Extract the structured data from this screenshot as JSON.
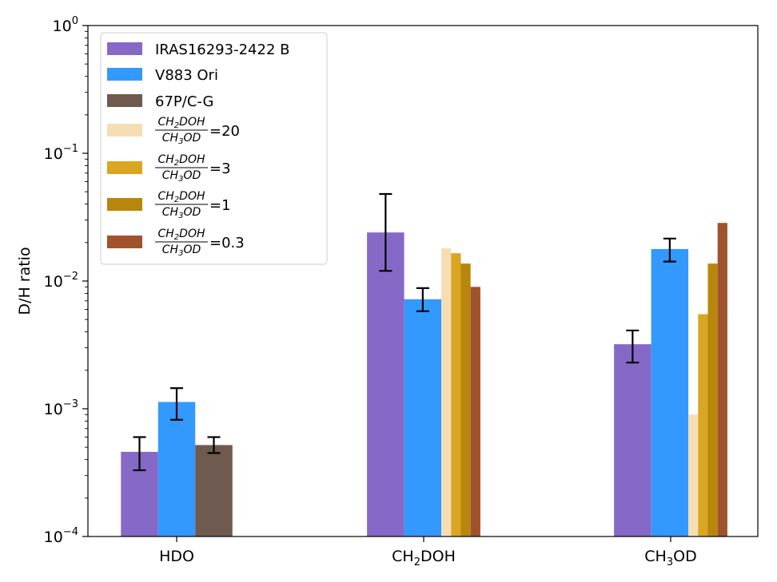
{
  "chart_data": {
    "type": "bar",
    "scale": "log",
    "ylabel": "D/H ratio",
    "ylim": [
      0.0001,
      1
    ],
    "y_ticks": [
      {
        "value": 0.0001,
        "base": "10",
        "exp": "−4"
      },
      {
        "value": 0.001,
        "base": "10",
        "exp": "−3"
      },
      {
        "value": 0.01,
        "base": "10",
        "exp": "−2"
      },
      {
        "value": 0.1,
        "base": "10",
        "exp": "−1"
      },
      {
        "value": 1,
        "base": "10",
        "exp": "0"
      }
    ],
    "categories": [
      {
        "pre": "HDO",
        "sub": "",
        "post": ""
      },
      {
        "pre": "CH",
        "sub": "2",
        "post": "DOH"
      },
      {
        "pre": "CH",
        "sub": "3",
        "post": "OD"
      }
    ],
    "series": [
      {
        "name": "IRAS16293-2422 B",
        "color": "#8669c7",
        "values": [
          0.00046,
          0.024,
          0.0032
        ],
        "err_low": [
          0.00033,
          0.012,
          0.0023
        ],
        "err_high": [
          0.0006,
          0.048,
          0.0041
        ]
      },
      {
        "name": "V883 Ori",
        "color": "#3399ff",
        "values": [
          0.00113,
          0.0072,
          0.0178
        ],
        "err_low": [
          0.00082,
          0.0058,
          0.0142
        ],
        "err_high": [
          0.00145,
          0.0088,
          0.0215
        ]
      },
      {
        "name": "67P/C-G",
        "color": "#6e5a4e",
        "values": [
          0.00052,
          null,
          null
        ],
        "err_low": [
          0.00045,
          null,
          null
        ],
        "err_high": [
          0.0006,
          null,
          null
        ]
      },
      {
        "name": "=20",
        "ratio_num_pre": "CH",
        "ratio_num_sub": "2",
        "ratio_num_post": "DOH",
        "ratio_den_pre": "CH",
        "ratio_den_sub": "3",
        "ratio_den_post": "OD",
        "color": "#f5deb3",
        "values": [
          null,
          0.018,
          0.0009
        ]
      },
      {
        "name": "=3",
        "ratio_num_pre": "CH",
        "ratio_num_sub": "2",
        "ratio_num_post": "DOH",
        "ratio_den_pre": "CH",
        "ratio_den_sub": "3",
        "ratio_den_post": "OD",
        "color": "#daa520",
        "values": [
          null,
          0.0165,
          0.0055
        ]
      },
      {
        "name": "=1",
        "ratio_num_pre": "CH",
        "ratio_num_sub": "2",
        "ratio_num_post": "DOH",
        "ratio_den_pre": "CH",
        "ratio_den_sub": "3",
        "ratio_den_post": "OD",
        "color": "#b8860b",
        "values": [
          null,
          0.0137,
          0.0137
        ]
      },
      {
        "name": "=0.3",
        "ratio_num_pre": "CH",
        "ratio_num_sub": "2",
        "ratio_num_post": "DOH",
        "ratio_den_pre": "CH",
        "ratio_den_sub": "3",
        "ratio_den_post": "OD",
        "color": "#a0522d",
        "values": [
          null,
          0.009,
          0.0285
        ]
      }
    ],
    "legend_position": "top-left",
    "grid": false
  }
}
